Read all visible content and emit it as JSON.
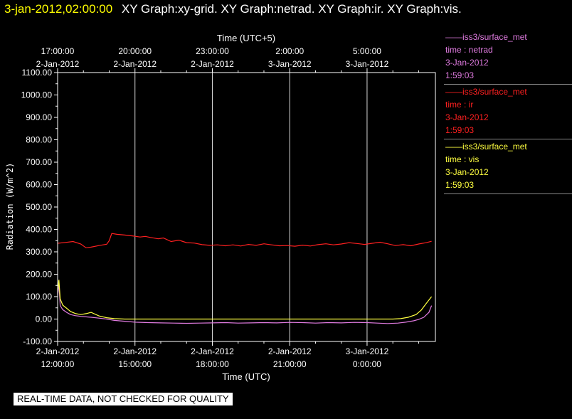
{
  "header": {
    "timestamp": "3-jan-2012,02:00:00",
    "graph_titles": [
      "XY Graph:xy-grid.",
      "XY Graph:netrad.",
      "XY Graph:ir.",
      "XY Graph:vis."
    ]
  },
  "legend": [
    {
      "source": "——iss3/surface_met",
      "series": "time : netrad",
      "date": "3-Jan-2012",
      "time": "1:59:03",
      "color": "#e07be0"
    },
    {
      "source": "——iss3/surface_met",
      "series": "time : ir",
      "date": "3-Jan-2012",
      "time": "1:59:03",
      "color": "#ff2020"
    },
    {
      "source": "——iss3/surface_met",
      "series": "time : vis",
      "date": "3-Jan-2012",
      "time": "1:59:03",
      "color": "#ffff40"
    }
  ],
  "disclaimer": "REAL-TIME DATA, NOT CHECKED FOR QUALITY",
  "colors": {
    "background": "#000000",
    "axis": "#ffffff",
    "grid": "#ffffff",
    "timestamp": "#ffff00"
  },
  "chart_data": {
    "type": "line",
    "ylabel": "Radiation (W/m^2)",
    "xlabel": "Time (UTC)",
    "top_axis_label": "Time (UTC+5)",
    "ylim": [
      -100,
      1100
    ],
    "xlim_hours_utc": [
      12,
      26.65
    ],
    "grid": "vertical",
    "yticks": [
      -100,
      0,
      100,
      200,
      300,
      400,
      500,
      600,
      700,
      800,
      900,
      1000,
      1100
    ],
    "ytick_labels": [
      "-100.00",
      "0.00",
      "100.00",
      "200.00",
      "300.00",
      "400.00",
      "500.00",
      "600.00",
      "700.00",
      "800.00",
      "900.00",
      "1000.00",
      "1100.00"
    ],
    "bottom_ticks": [
      {
        "hour": 12,
        "date": "2-Jan-2012",
        "time": "12:00:00"
      },
      {
        "hour": 15,
        "date": "2-Jan-2012",
        "time": "15:00:00"
      },
      {
        "hour": 18,
        "date": "2-Jan-2012",
        "time": "18:00:00"
      },
      {
        "hour": 21,
        "date": "2-Jan-2012",
        "time": "21:00:00"
      },
      {
        "hour": 24,
        "date": "3-Jan-2012",
        "time": "0:00:00"
      }
    ],
    "top_ticks": [
      {
        "hour": 12,
        "time": "17:00:00",
        "date": "2-Jan-2012"
      },
      {
        "hour": 15,
        "time": "20:00:00",
        "date": "2-Jan-2012"
      },
      {
        "hour": 18,
        "time": "23:00:00",
        "date": "2-Jan-2012"
      },
      {
        "hour": 21,
        "time": "2:00:00",
        "date": "3-Jan-2012"
      },
      {
        "hour": 24,
        "time": "5:00:00",
        "date": "3-Jan-2012"
      }
    ],
    "series": [
      {
        "name": "ir",
        "color": "#ff2020",
        "x": [
          12.0,
          12.3,
          12.6,
          12.9,
          13.1,
          13.3,
          13.6,
          13.9,
          14.0,
          14.1,
          14.3,
          14.6,
          14.9,
          15.2,
          15.4,
          15.6,
          15.9,
          16.1,
          16.4,
          16.7,
          17.0,
          17.3,
          17.6,
          17.9,
          18.2,
          18.5,
          18.8,
          19.1,
          19.4,
          19.7,
          20.0,
          20.3,
          20.6,
          20.9,
          21.2,
          21.5,
          21.8,
          22.1,
          22.4,
          22.7,
          23.0,
          23.3,
          23.6,
          23.9,
          24.2,
          24.5,
          24.8,
          25.1,
          25.4,
          25.7,
          26.0,
          26.3,
          26.5
        ],
        "y": [
          338,
          342,
          346,
          335,
          318,
          321,
          328,
          334,
          350,
          382,
          378,
          375,
          371,
          366,
          369,
          364,
          358,
          362,
          346,
          352,
          341,
          339,
          332,
          329,
          331,
          327,
          331,
          326,
          333,
          329,
          336,
          331,
          327,
          328,
          325,
          330,
          326,
          332,
          336,
          331,
          335,
          341,
          337,
          333,
          338,
          343,
          336,
          328,
          332,
          327,
          335,
          341,
          347
        ]
      },
      {
        "name": "netrad",
        "color": "#e07be0",
        "x": [
          12.0,
          12.05,
          12.1,
          12.2,
          12.35,
          12.5,
          12.7,
          12.9,
          13.1,
          13.3,
          13.6,
          13.9,
          14.2,
          14.6,
          15.0,
          15.5,
          16.0,
          16.5,
          17.0,
          17.5,
          18.0,
          18.5,
          19.0,
          19.5,
          20.0,
          20.5,
          21.0,
          21.5,
          22.0,
          22.5,
          23.0,
          23.5,
          24.0,
          24.4,
          24.8,
          25.2,
          25.5,
          25.8,
          26.0,
          26.2,
          26.4,
          26.5
        ],
        "y": [
          100,
          160,
          60,
          42,
          30,
          20,
          15,
          12,
          10,
          8,
          4,
          0,
          -6,
          -10,
          -14,
          -16,
          -17,
          -18,
          -19,
          -18,
          -17,
          -16,
          -18,
          -17,
          -16,
          -17,
          -15,
          -16,
          -18,
          -16,
          -17,
          -15,
          -16,
          -18,
          -20,
          -18,
          -14,
          -8,
          -2,
          8,
          30,
          60
        ]
      },
      {
        "name": "vis",
        "color": "#ffff40",
        "x": [
          12.0,
          12.05,
          12.1,
          12.2,
          12.35,
          12.5,
          12.7,
          12.9,
          13.1,
          13.3,
          13.6,
          13.9,
          14.2,
          14.6,
          15.0,
          15.5,
          16.0,
          17.0,
          18.0,
          19.0,
          20.0,
          21.0,
          22.0,
          23.0,
          24.0,
          24.5,
          25.0,
          25.3,
          25.6,
          25.9,
          26.1,
          26.3,
          26.5
        ],
        "y": [
          120,
          175,
          90,
          62,
          48,
          34,
          24,
          20,
          24,
          30,
          14,
          6,
          2,
          0,
          0,
          0,
          0,
          0,
          0,
          0,
          0,
          0,
          0,
          0,
          0,
          0,
          0,
          2,
          8,
          20,
          40,
          70,
          100
        ]
      }
    ]
  }
}
